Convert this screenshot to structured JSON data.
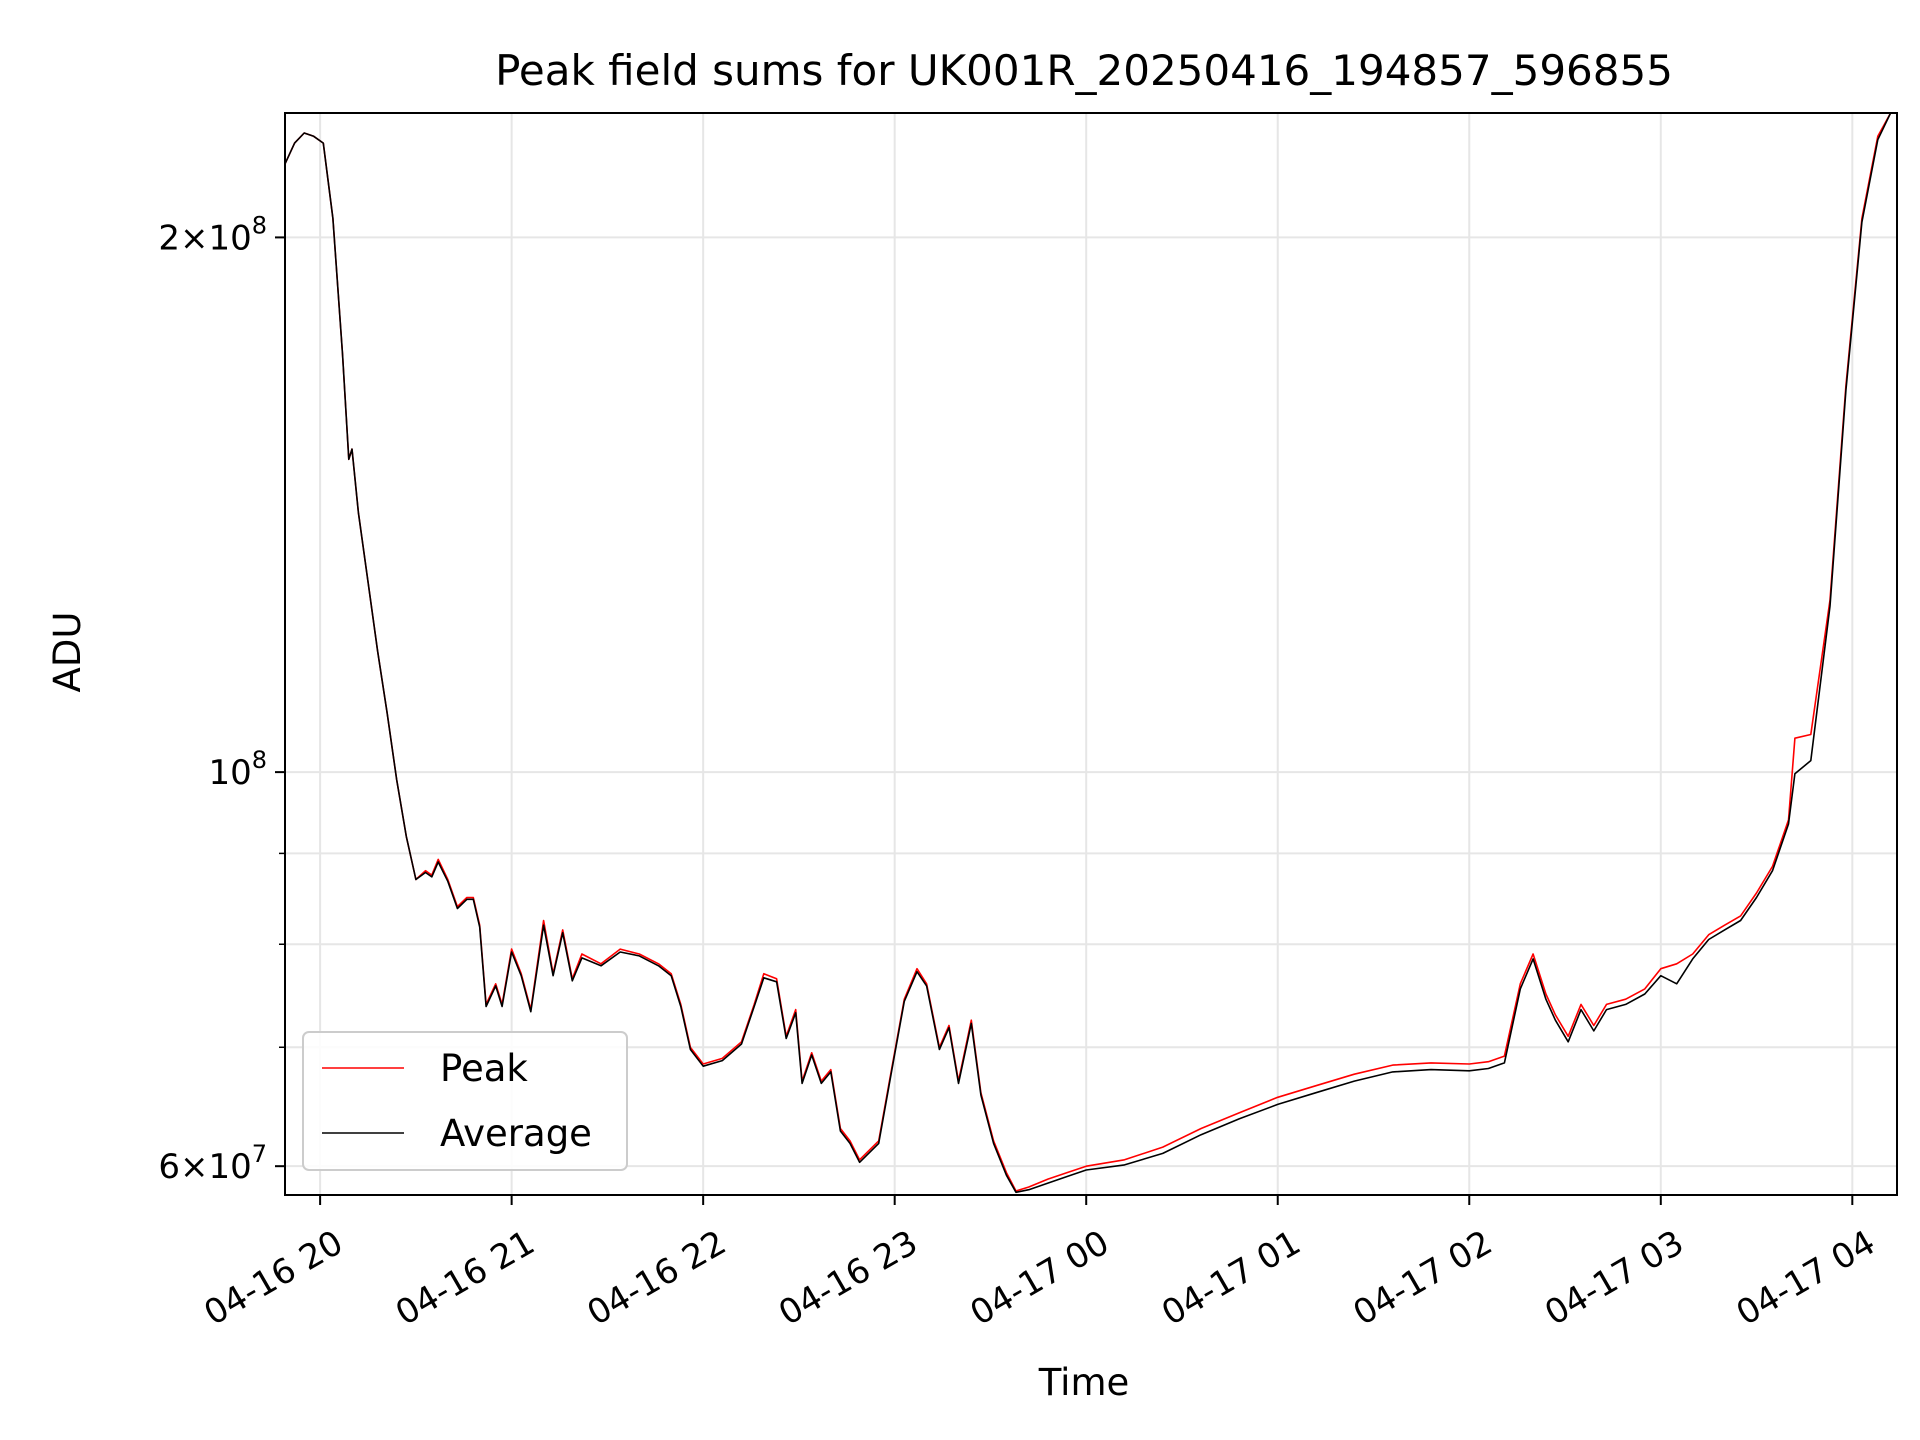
{
  "chart_data": {
    "type": "line",
    "title": "Peak field sums for UK001R_20250416_194857_596855",
    "xlabel": "Time",
    "ylabel": "ADU",
    "yscale": "log",
    "ylim": [
      57800000,
      235000000
    ],
    "x_ticks": [
      "04-16 20",
      "04-16 21",
      "04-16 22",
      "04-16 23",
      "04-17 00",
      "04-17 01",
      "04-17 02",
      "04-17 03",
      "04-17 04"
    ],
    "y_major_ticks": [
      {
        "value": 60000000,
        "label": "6 × 10^7"
      },
      {
        "value": 100000000,
        "label": "10^8"
      },
      {
        "value": 200000000,
        "label": "2 × 10^8"
      }
    ],
    "y_minor_ticks": [
      70000000,
      80000000,
      90000000
    ],
    "grid": true,
    "legend_position": "lower-left",
    "series": [
      {
        "name": "Peak",
        "color": "#ff0000",
        "points": [
          [
            "2025-04-16T19:49",
            220000000
          ],
          [
            "2025-04-16T19:52",
            226000000
          ],
          [
            "2025-04-16T19:55",
            229000000
          ],
          [
            "2025-04-16T19:58",
            228000000
          ],
          [
            "2025-04-16T20:01",
            226000000
          ],
          [
            "2025-04-16T20:04",
            205000000
          ],
          [
            "2025-04-16T20:07",
            172000000
          ],
          [
            "2025-04-16T20:09",
            150000000
          ],
          [
            "2025-04-16T20:10",
            152000000
          ],
          [
            "2025-04-16T20:12",
            140000000
          ],
          [
            "2025-04-16T20:15",
            128000000
          ],
          [
            "2025-04-16T20:18",
            117000000
          ],
          [
            "2025-04-16T20:21",
            108000000
          ],
          [
            "2025-04-16T20:24",
            99000000
          ],
          [
            "2025-04-16T20:27",
            92000000
          ],
          [
            "2025-04-16T20:30",
            87000000
          ],
          [
            "2025-04-16T20:33",
            88000000
          ],
          [
            "2025-04-16T20:35",
            87500000
          ],
          [
            "2025-04-16T20:37",
            89300000
          ],
          [
            "2025-04-16T20:40",
            87000000
          ],
          [
            "2025-04-16T20:43",
            84000000
          ],
          [
            "2025-04-16T20:46",
            85000000
          ],
          [
            "2025-04-16T20:48",
            85000000
          ],
          [
            "2025-04-16T20:50",
            82000000
          ],
          [
            "2025-04-16T20:52",
            74000000
          ],
          [
            "2025-04-16T20:55",
            76000000
          ],
          [
            "2025-04-16T20:57",
            74000000
          ],
          [
            "2025-04-16T21:00",
            79500000
          ],
          [
            "2025-04-16T21:03",
            77000000
          ],
          [
            "2025-04-16T21:06",
            73500000
          ],
          [
            "2025-04-16T21:10",
            82500000
          ],
          [
            "2025-04-16T21:13",
            77000000
          ],
          [
            "2025-04-16T21:16",
            81500000
          ],
          [
            "2025-04-16T21:19",
            76500000
          ],
          [
            "2025-04-16T21:22",
            79000000
          ],
          [
            "2025-04-16T21:28",
            78000000
          ],
          [
            "2025-04-16T21:34",
            79500000
          ],
          [
            "2025-04-16T21:40",
            79000000
          ],
          [
            "2025-04-16T21:46",
            78000000
          ],
          [
            "2025-04-16T21:50",
            77000000
          ],
          [
            "2025-04-16T21:53",
            74000000
          ],
          [
            "2025-04-16T21:56",
            70000000
          ],
          [
            "2025-04-16T22:00",
            68500000
          ],
          [
            "2025-04-16T22:06",
            69000000
          ],
          [
            "2025-04-16T22:12",
            70500000
          ],
          [
            "2025-04-16T22:16",
            74000000
          ],
          [
            "2025-04-16T22:19",
            77000000
          ],
          [
            "2025-04-16T22:23",
            76500000
          ],
          [
            "2025-04-16T22:26",
            71000000
          ],
          [
            "2025-04-16T22:29",
            73500000
          ],
          [
            "2025-04-16T22:31",
            67000000
          ],
          [
            "2025-04-16T22:34",
            69500000
          ],
          [
            "2025-04-16T22:37",
            67000000
          ],
          [
            "2025-04-16T22:40",
            68000000
          ],
          [
            "2025-04-16T22:43",
            63000000
          ],
          [
            "2025-04-16T22:46",
            62000000
          ],
          [
            "2025-04-16T22:49",
            60500000
          ],
          [
            "2025-04-16T22:55",
            62000000
          ],
          [
            "2025-04-16T22:59",
            68000000
          ],
          [
            "2025-04-16T23:03",
            74500000
          ],
          [
            "2025-04-16T23:07",
            77500000
          ],
          [
            "2025-04-16T23:10",
            76000000
          ],
          [
            "2025-04-16T23:14",
            70000000
          ],
          [
            "2025-04-16T23:17",
            72000000
          ],
          [
            "2025-04-16T23:20",
            67000000
          ],
          [
            "2025-04-16T23:24",
            72500000
          ],
          [
            "2025-04-16T23:27",
            66000000
          ],
          [
            "2025-04-16T23:31",
            62000000
          ],
          [
            "2025-04-16T23:35",
            59500000
          ],
          [
            "2025-04-16T23:38",
            58100000
          ],
          [
            "2025-04-16T23:42",
            58400000
          ],
          [
            "2025-04-16T23:48",
            59000000
          ],
          [
            "2025-04-16T23:54",
            59500000
          ],
          [
            "2025-04-17T00:00",
            60000000
          ],
          [
            "2025-04-17T00:12",
            60500000
          ],
          [
            "2025-04-17T00:24",
            61500000
          ],
          [
            "2025-04-17T00:36",
            63000000
          ],
          [
            "2025-04-17T00:48",
            64300000
          ],
          [
            "2025-04-17T01:00",
            65600000
          ],
          [
            "2025-04-17T01:12",
            66600000
          ],
          [
            "2025-04-17T01:24",
            67600000
          ],
          [
            "2025-04-17T01:36",
            68400000
          ],
          [
            "2025-04-17T01:48",
            68600000
          ],
          [
            "2025-04-17T02:00",
            68500000
          ],
          [
            "2025-04-17T02:06",
            68700000
          ],
          [
            "2025-04-17T02:11",
            69200000
          ],
          [
            "2025-04-17T02:16",
            76000000
          ],
          [
            "2025-04-17T02:20",
            79000000
          ],
          [
            "2025-04-17T02:24",
            75000000
          ],
          [
            "2025-04-17T02:27",
            73000000
          ],
          [
            "2025-04-17T02:31",
            71000000
          ],
          [
            "2025-04-17T02:35",
            74000000
          ],
          [
            "2025-04-17T02:39",
            72000000
          ],
          [
            "2025-04-17T02:43",
            74000000
          ],
          [
            "2025-04-17T02:49",
            74500000
          ],
          [
            "2025-04-17T02:55",
            75500000
          ],
          [
            "2025-04-17T03:00",
            77500000
          ],
          [
            "2025-04-17T03:05",
            78000000
          ],
          [
            "2025-04-17T03:10",
            79000000
          ],
          [
            "2025-04-17T03:15",
            81000000
          ],
          [
            "2025-04-17T03:20",
            82000000
          ],
          [
            "2025-04-17T03:25",
            83000000
          ],
          [
            "2025-04-17T03:30",
            85500000
          ],
          [
            "2025-04-17T03:35",
            88500000
          ],
          [
            "2025-04-17T03:40",
            94000000
          ],
          [
            "2025-04-17T03:42",
            104500000
          ],
          [
            "2025-04-17T03:47",
            105000000
          ],
          [
            "2025-04-17T03:53",
            125000000
          ],
          [
            "2025-04-17T03:58",
            165000000
          ],
          [
            "2025-04-17T04:03",
            205000000
          ],
          [
            "2025-04-17T04:08",
            228000000
          ],
          [
            "2025-04-17T04:12",
            235000000
          ]
        ]
      },
      {
        "name": "Average",
        "color": "#000000",
        "points": [
          [
            "2025-04-16T19:49",
            220000000
          ],
          [
            "2025-04-16T19:52",
            226000000
          ],
          [
            "2025-04-16T19:55",
            229000000
          ],
          [
            "2025-04-16T19:58",
            228000000
          ],
          [
            "2025-04-16T20:01",
            226000000
          ],
          [
            "2025-04-16T20:04",
            205000000
          ],
          [
            "2025-04-16T20:07",
            172000000
          ],
          [
            "2025-04-16T20:09",
            150000000
          ],
          [
            "2025-04-16T20:10",
            152000000
          ],
          [
            "2025-04-16T20:12",
            140000000
          ],
          [
            "2025-04-16T20:15",
            128000000
          ],
          [
            "2025-04-16T20:18",
            117000000
          ],
          [
            "2025-04-16T20:21",
            108000000
          ],
          [
            "2025-04-16T20:24",
            99000000
          ],
          [
            "2025-04-16T20:27",
            92000000
          ],
          [
            "2025-04-16T20:30",
            87000000
          ],
          [
            "2025-04-16T20:33",
            87800000
          ],
          [
            "2025-04-16T20:35",
            87300000
          ],
          [
            "2025-04-16T20:37",
            89000000
          ],
          [
            "2025-04-16T20:40",
            86800000
          ],
          [
            "2025-04-16T20:43",
            83800000
          ],
          [
            "2025-04-16T20:46",
            84800000
          ],
          [
            "2025-04-16T20:48",
            84800000
          ],
          [
            "2025-04-16T20:50",
            81800000
          ],
          [
            "2025-04-16T20:52",
            73800000
          ],
          [
            "2025-04-16T20:55",
            75800000
          ],
          [
            "2025-04-16T20:57",
            73800000
          ],
          [
            "2025-04-16T21:00",
            79200000
          ],
          [
            "2025-04-16T21:03",
            76800000
          ],
          [
            "2025-04-16T21:06",
            73300000
          ],
          [
            "2025-04-16T21:10",
            82000000
          ],
          [
            "2025-04-16T21:13",
            76800000
          ],
          [
            "2025-04-16T21:16",
            81200000
          ],
          [
            "2025-04-16T21:19",
            76300000
          ],
          [
            "2025-04-16T21:22",
            78600000
          ],
          [
            "2025-04-16T21:28",
            77800000
          ],
          [
            "2025-04-16T21:34",
            79200000
          ],
          [
            "2025-04-16T21:40",
            78800000
          ],
          [
            "2025-04-16T21:46",
            77800000
          ],
          [
            "2025-04-16T21:50",
            76800000
          ],
          [
            "2025-04-16T21:53",
            73800000
          ],
          [
            "2025-04-16T21:56",
            69800000
          ],
          [
            "2025-04-16T22:00",
            68300000
          ],
          [
            "2025-04-16T22:06",
            68800000
          ],
          [
            "2025-04-16T22:12",
            70300000
          ],
          [
            "2025-04-16T22:16",
            73800000
          ],
          [
            "2025-04-16T22:19",
            76600000
          ],
          [
            "2025-04-16T22:23",
            76200000
          ],
          [
            "2025-04-16T22:26",
            70800000
          ],
          [
            "2025-04-16T22:29",
            73200000
          ],
          [
            "2025-04-16T22:31",
            66800000
          ],
          [
            "2025-04-16T22:34",
            69300000
          ],
          [
            "2025-04-16T22:37",
            66800000
          ],
          [
            "2025-04-16T22:40",
            67800000
          ],
          [
            "2025-04-16T22:43",
            62800000
          ],
          [
            "2025-04-16T22:46",
            61800000
          ],
          [
            "2025-04-16T22:49",
            60300000
          ],
          [
            "2025-04-16T22:55",
            61800000
          ],
          [
            "2025-04-16T22:59",
            67800000
          ],
          [
            "2025-04-16T23:03",
            74300000
          ],
          [
            "2025-04-16T23:07",
            77200000
          ],
          [
            "2025-04-16T23:10",
            75800000
          ],
          [
            "2025-04-16T23:14",
            69800000
          ],
          [
            "2025-04-16T23:17",
            71800000
          ],
          [
            "2025-04-16T23:20",
            66800000
          ],
          [
            "2025-04-16T23:24",
            72200000
          ],
          [
            "2025-04-16T23:27",
            65800000
          ],
          [
            "2025-04-16T23:31",
            61800000
          ],
          [
            "2025-04-16T23:35",
            59300000
          ],
          [
            "2025-04-16T23:38",
            58000000
          ],
          [
            "2025-04-16T23:42",
            58200000
          ],
          [
            "2025-04-16T23:48",
            58700000
          ],
          [
            "2025-04-16T23:54",
            59200000
          ],
          [
            "2025-04-17T00:00",
            59700000
          ],
          [
            "2025-04-17T00:12",
            60100000
          ],
          [
            "2025-04-17T00:24",
            61000000
          ],
          [
            "2025-04-17T00:36",
            62500000
          ],
          [
            "2025-04-17T00:48",
            63800000
          ],
          [
            "2025-04-17T01:00",
            65000000
          ],
          [
            "2025-04-17T01:12",
            66000000
          ],
          [
            "2025-04-17T01:24",
            67000000
          ],
          [
            "2025-04-17T01:36",
            67800000
          ],
          [
            "2025-04-17T01:48",
            68000000
          ],
          [
            "2025-04-17T02:00",
            67900000
          ],
          [
            "2025-04-17T02:06",
            68100000
          ],
          [
            "2025-04-17T02:11",
            68600000
          ],
          [
            "2025-04-17T02:16",
            75500000
          ],
          [
            "2025-04-17T02:20",
            78500000
          ],
          [
            "2025-04-17T02:24",
            74500000
          ],
          [
            "2025-04-17T02:27",
            72500000
          ],
          [
            "2025-04-17T02:31",
            70500000
          ],
          [
            "2025-04-17T02:35",
            73500000
          ],
          [
            "2025-04-17T02:39",
            71500000
          ],
          [
            "2025-04-17T02:43",
            73500000
          ],
          [
            "2025-04-17T02:49",
            74000000
          ],
          [
            "2025-04-17T02:55",
            75000000
          ],
          [
            "2025-04-17T03:00",
            76800000
          ],
          [
            "2025-04-17T03:05",
            76000000
          ],
          [
            "2025-04-17T03:10",
            78500000
          ],
          [
            "2025-04-17T03:15",
            80500000
          ],
          [
            "2025-04-17T03:20",
            81500000
          ],
          [
            "2025-04-17T03:25",
            82500000
          ],
          [
            "2025-04-17T03:30",
            85000000
          ],
          [
            "2025-04-17T03:35",
            88000000
          ],
          [
            "2025-04-17T03:40",
            93500000
          ],
          [
            "2025-04-17T03:42",
            99800000
          ],
          [
            "2025-04-17T03:47",
            101500000
          ],
          [
            "2025-04-17T03:53",
            124000000
          ],
          [
            "2025-04-17T03:58",
            164000000
          ],
          [
            "2025-04-17T04:03",
            204000000
          ],
          [
            "2025-04-17T04:08",
            227000000
          ],
          [
            "2025-04-17T04:12",
            235000000
          ]
        ]
      }
    ]
  }
}
